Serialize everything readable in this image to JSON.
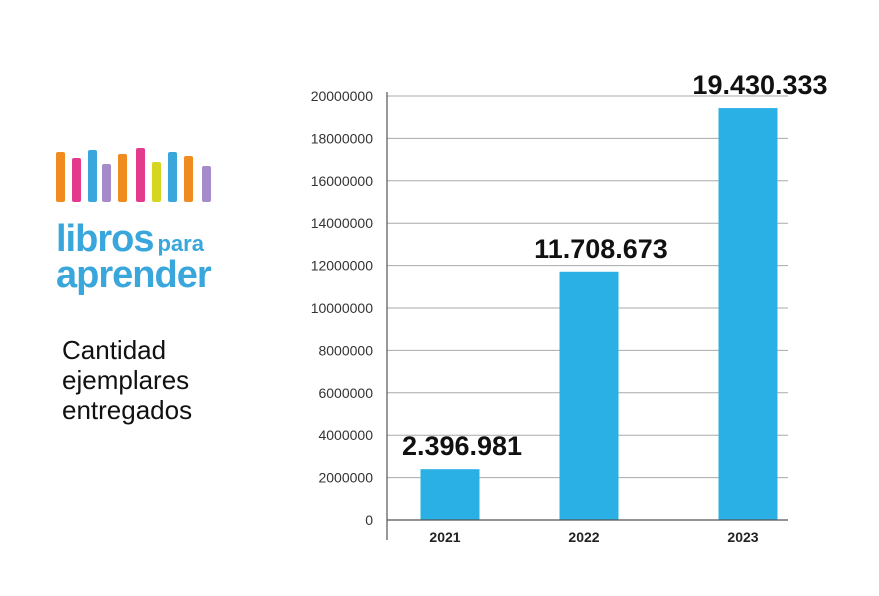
{
  "logo": {
    "word_main": "libros",
    "word_small": "para",
    "word_bottom": "aprender",
    "book_colors": [
      "#f08b1f",
      "#e43a8d",
      "#3aa7dc",
      "#a58bc9",
      "#f08b1f",
      "#e43a8d",
      "#d7d61f",
      "#3aa7dc",
      "#f08b1f",
      "#a58bc9"
    ]
  },
  "caption": {
    "line1": "Cantidad",
    "line2": "ejemplares",
    "line3": "entregados"
  },
  "colors": {
    "bar": "#2bb0e6",
    "grid": "#aaaaaa",
    "axis": "#555555",
    "label": "#111111"
  },
  "chart_data": {
    "type": "bar",
    "categories": [
      "2021",
      "2022",
      "2023"
    ],
    "values": [
      2396981,
      11708673,
      19430333
    ],
    "data_labels": [
      "2.396.981",
      "11.708.673",
      "19.430.333"
    ],
    "yticks": [
      "0",
      "2000000",
      "4000000",
      "6000000",
      "8000000",
      "10000000",
      "12000000",
      "14000000",
      "16000000",
      "18000000",
      "20000000"
    ],
    "ylim": [
      0,
      20000000
    ],
    "title": "Cantidad ejemplares entregados",
    "xlabel": "",
    "ylabel": "",
    "grid": true
  }
}
